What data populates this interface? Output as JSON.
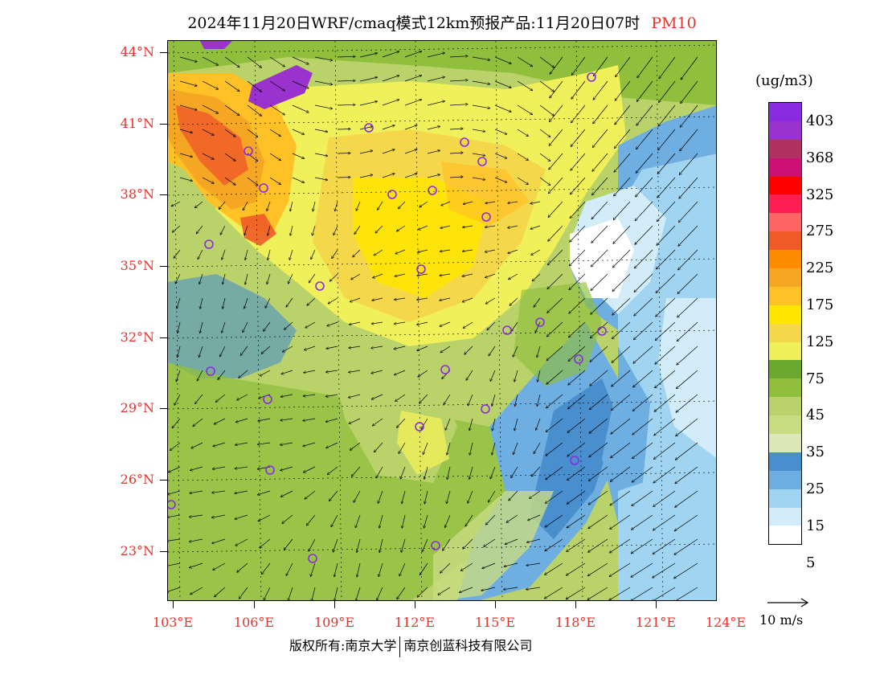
{
  "title": "2024年11月20日WRF/cmaq模式12km预报产品:11月20日07时",
  "pollutant": "PM10",
  "units": "(ug/m3)",
  "lat_labels": [
    "44°N",
    "41°N",
    "38°N",
    "35°N",
    "32°N",
    "29°N",
    "26°N",
    "23°N"
  ],
  "lon_labels": [
    "103°E",
    "106°E",
    "109°E",
    "112°E",
    "115°E",
    "118°E",
    "121°E",
    "124°E"
  ],
  "colorbar": {
    "colors": [
      "#8a2be2",
      "#9a32cd",
      "#b03060",
      "#cd1076",
      "#ff0000",
      "#ff1e50",
      "#ff6464",
      "#f05a28",
      "#ff8c00",
      "#f5a623",
      "#ffc125",
      "#ffe600",
      "#f5d84a",
      "#f0f05a",
      "#6aa830",
      "#8fbf3c",
      "#bad26a",
      "#c8dc82",
      "#dce8b8",
      "#4a8fcd",
      "#6eaee0",
      "#a0d4f0",
      "#d2ecfa",
      "#ffffff"
    ],
    "labels": [
      "403",
      "368",
      "325",
      "275",
      "225",
      "175",
      "125",
      "75",
      "45",
      "35",
      "25",
      "15",
      "5"
    ]
  },
  "vector_scale_label": "10 m/s",
  "footer_left": "版权所有:南京大学",
  "footer_right": "南京创蓝科技有限公司"
}
